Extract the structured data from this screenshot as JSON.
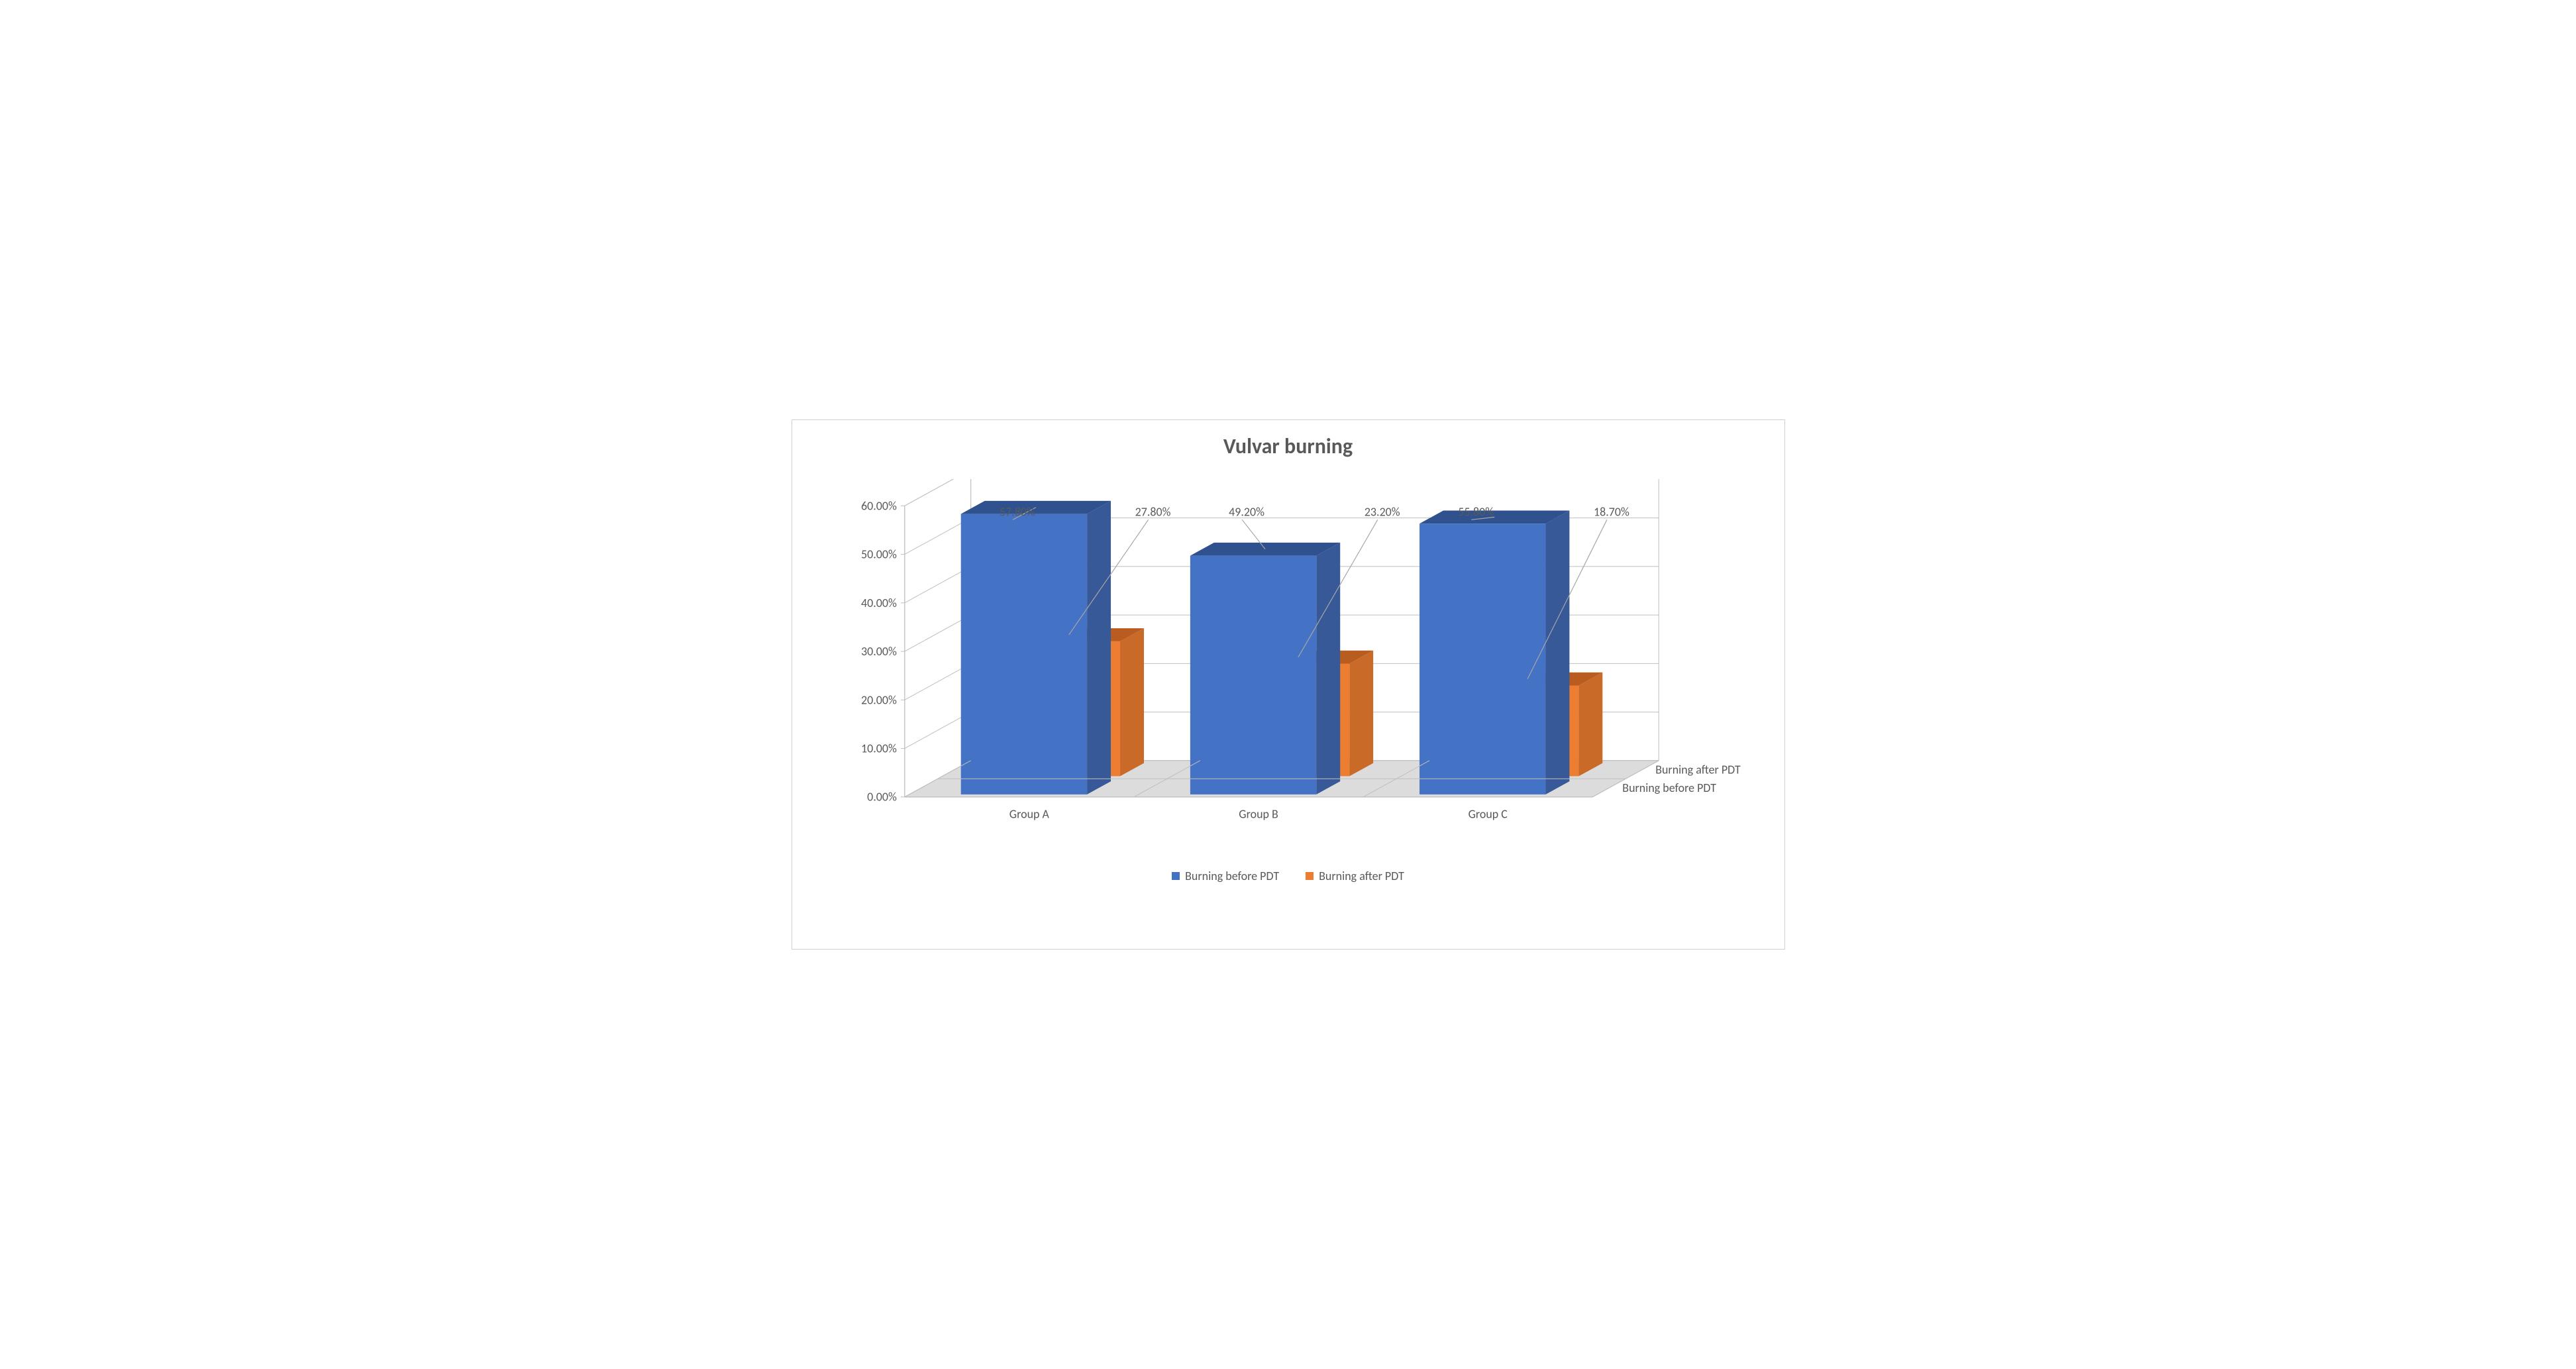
{
  "chart": {
    "type": "bar-3d",
    "title": "Vulvar burning",
    "title_fontsize": 32,
    "title_color": "#595959",
    "categories": [
      "Group A",
      "Group B",
      "Group C"
    ],
    "series": [
      {
        "name": "Burning before PDT",
        "color_front": "#4472c4",
        "color_top": "#2f528f",
        "color_side": "#385998",
        "values": [
          57.8,
          49.2,
          55.8
        ],
        "labels": [
          "57.80%",
          "49.20%",
          "55.80%"
        ]
      },
      {
        "name": "Burning after PDT",
        "color_front": "#ed7d31",
        "color_top": "#b85c1f",
        "color_side": "#c96a28",
        "values": [
          27.8,
          23.2,
          18.7
        ],
        "labels": [
          "27.80%",
          "23.20%",
          "18.70%"
        ]
      }
    ],
    "y_axis": {
      "min": 0,
      "max": 60,
      "ticks": [
        0,
        10,
        20,
        30,
        40,
        50,
        60
      ],
      "tick_labels": [
        "0.00%",
        "10.00%",
        "20.00%",
        "30.00%",
        "40.00%",
        "50.00%",
        "60.00%"
      ]
    },
    "depth_series_labels": [
      "Burning before PDT",
      "Burning after PDT"
    ],
    "colors": {
      "background": "#ffffff",
      "border": "#d0d0d0",
      "floor": "#c7c7c7",
      "floor_light": "#dcdcdc",
      "wall_line": "#bfbfbf",
      "text": "#595959",
      "leader": "#a6a6a6"
    },
    "label_fontsize": 18,
    "axis_fontsize": 18,
    "bar_width_ratio": 0.55,
    "legend_swatch_size": 12
  }
}
